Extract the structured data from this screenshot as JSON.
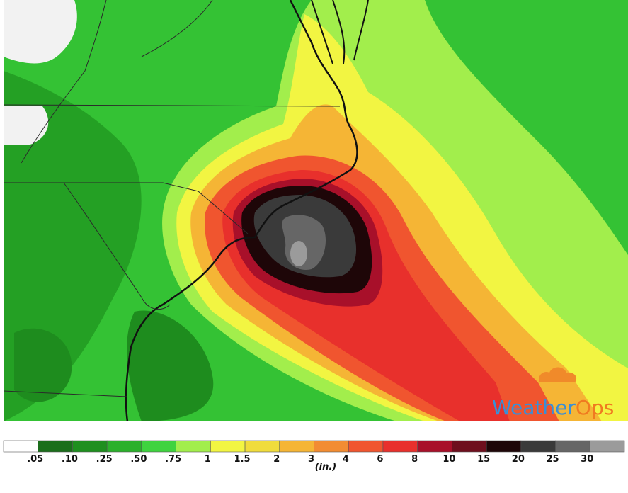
{
  "legend": {
    "colors": [
      "#ffffff",
      "#1b6e1b",
      "#1f8f1f",
      "#2bb02b",
      "#3fd33f",
      "#a2ee4c",
      "#f2f542",
      "#f0dc3c",
      "#f5b535",
      "#f28c32",
      "#f0552f",
      "#e8302c",
      "#a8102a",
      "#6e0f1e",
      "#1e0608",
      "#3a3a3a",
      "#666666",
      "#9b9b9b"
    ],
    "labels": [
      ".05",
      ".10",
      ".25",
      ".50",
      ".75",
      "1",
      "1.5",
      "2",
      "3",
      "4",
      "6",
      "8",
      "10",
      "15",
      "20",
      "25",
      "30"
    ],
    "unit": "(in.)"
  },
  "logo": {
    "parts": [
      "Weather",
      "Ops"
    ]
  }
}
